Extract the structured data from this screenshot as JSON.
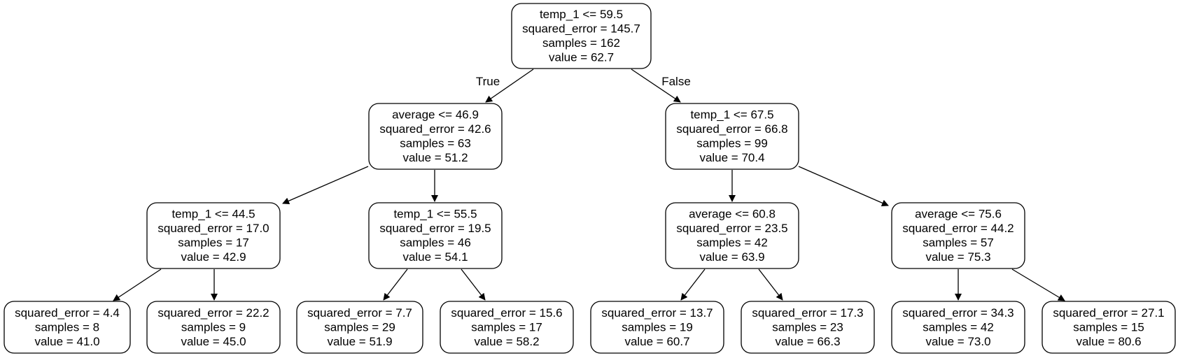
{
  "tree": {
    "nodes": [
      {
        "id": "n0",
        "lines": [
          "temp_1 <= 59.5",
          "squared_error = 145.7",
          "samples = 162",
          "value = 62.7"
        ]
      },
      {
        "id": "n1",
        "lines": [
          "average <= 46.9",
          "squared_error = 42.6",
          "samples = 63",
          "value = 51.2"
        ]
      },
      {
        "id": "n2",
        "lines": [
          "temp_1 <= 67.5",
          "squared_error = 66.8",
          "samples = 99",
          "value = 70.4"
        ]
      },
      {
        "id": "n3",
        "lines": [
          "temp_1 <= 44.5",
          "squared_error = 17.0",
          "samples = 17",
          "value = 42.9"
        ]
      },
      {
        "id": "n4",
        "lines": [
          "temp_1 <= 55.5",
          "squared_error = 19.5",
          "samples = 46",
          "value = 54.1"
        ]
      },
      {
        "id": "n5",
        "lines": [
          "average <= 60.8",
          "squared_error = 23.5",
          "samples = 42",
          "value = 63.9"
        ]
      },
      {
        "id": "n6",
        "lines": [
          "average <= 75.6",
          "squared_error = 44.2",
          "samples = 57",
          "value = 75.3"
        ]
      },
      {
        "id": "n7",
        "lines": [
          "squared_error = 4.4",
          "samples = 8",
          "value = 41.0"
        ]
      },
      {
        "id": "n8",
        "lines": [
          "squared_error = 22.2",
          "samples = 9",
          "value = 45.0"
        ]
      },
      {
        "id": "n9",
        "lines": [
          "squared_error = 7.7",
          "samples = 29",
          "value = 51.9"
        ]
      },
      {
        "id": "n10",
        "lines": [
          "squared_error = 15.6",
          "samples = 17",
          "value = 58.2"
        ]
      },
      {
        "id": "n11",
        "lines": [
          "squared_error = 13.7",
          "samples = 19",
          "value = 60.7"
        ]
      },
      {
        "id": "n12",
        "lines": [
          "squared_error = 17.3",
          "samples = 23",
          "value = 66.3"
        ]
      },
      {
        "id": "n13",
        "lines": [
          "squared_error = 34.3",
          "samples = 42",
          "value = 73.0"
        ]
      },
      {
        "id": "n14",
        "lines": [
          "squared_error = 27.1",
          "samples = 15",
          "value = 80.6"
        ]
      }
    ],
    "edges": [
      {
        "from": "n0",
        "to": "n1",
        "label": "True"
      },
      {
        "from": "n0",
        "to": "n2",
        "label": "False"
      },
      {
        "from": "n1",
        "to": "n3"
      },
      {
        "from": "n1",
        "to": "n4"
      },
      {
        "from": "n2",
        "to": "n5"
      },
      {
        "from": "n2",
        "to": "n6"
      },
      {
        "from": "n3",
        "to": "n7"
      },
      {
        "from": "n3",
        "to": "n8"
      },
      {
        "from": "n4",
        "to": "n9"
      },
      {
        "from": "n4",
        "to": "n10"
      },
      {
        "from": "n5",
        "to": "n11"
      },
      {
        "from": "n5",
        "to": "n12"
      },
      {
        "from": "n6",
        "to": "n13"
      },
      {
        "from": "n6",
        "to": "n14"
      }
    ]
  }
}
